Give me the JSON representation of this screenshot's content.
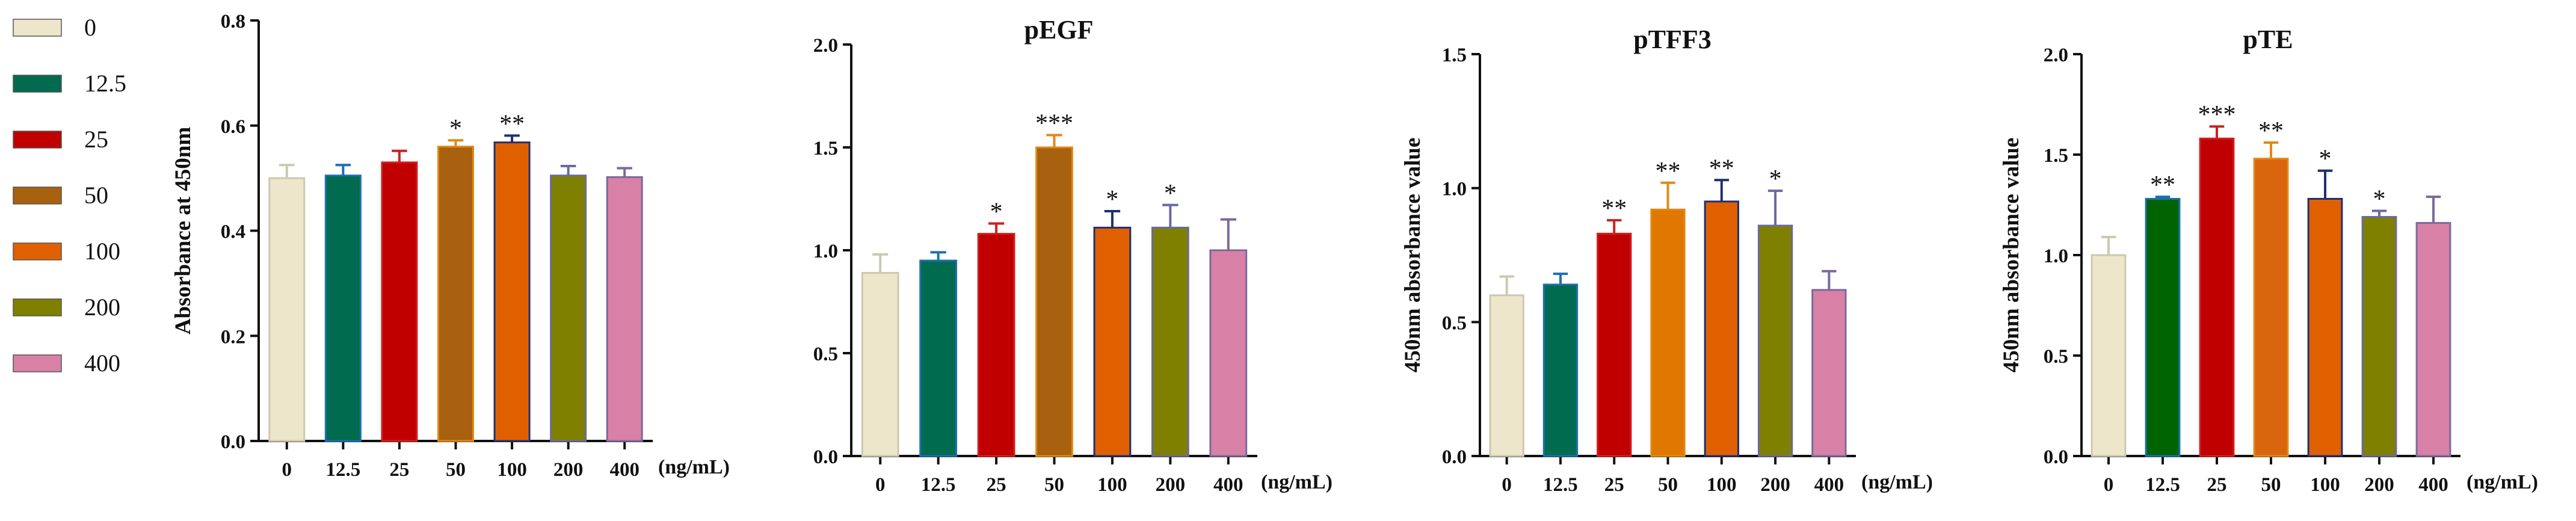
{
  "legend": {
    "items": [
      {
        "label": "0",
        "color": "#EDE6CB"
      },
      {
        "label": "12.5",
        "color": "#006B4E"
      },
      {
        "label": "25",
        "color": "#C00000"
      },
      {
        "label": "50",
        "color": "#A8610E"
      },
      {
        "label": "100",
        "color": "#E06000"
      },
      {
        "label": "200",
        "color": "#808000"
      },
      {
        "label": "400",
        "color": "#D980A6"
      }
    ]
  },
  "chart_data": [
    {
      "type": "bar",
      "title": "",
      "ylabel": "Absorbance at 450nm",
      "xlabel": "(ng/mL)",
      "ylim": [
        0,
        0.8
      ],
      "yticks": [
        "0.0",
        "0.2",
        "0.4",
        "0.6",
        "0.8"
      ],
      "categories": [
        "0",
        "12.5",
        "25",
        "50",
        "100",
        "200",
        "400"
      ],
      "values": [
        0.5,
        0.505,
        0.53,
        0.56,
        0.568,
        0.505,
        0.502
      ],
      "errors": [
        0.025,
        0.02,
        0.022,
        0.012,
        0.013,
        0.018,
        0.017
      ],
      "significance": [
        "",
        "",
        "",
        "*",
        "**",
        "",
        ""
      ],
      "colors": [
        "#EDE6CB",
        "#006B4E",
        "#C00000",
        "#A8610E",
        "#E06000",
        "#808000",
        "#D980A6"
      ],
      "error_colors": [
        "#CCC8B0",
        "#1F6FB0",
        "#D02020",
        "#E08A18",
        "#1F2F70",
        "#6A6AA0",
        "#7A6A9A"
      ]
    },
    {
      "type": "bar",
      "title": "pEGF",
      "ylabel": "",
      "xlabel": "(ng/mL)",
      "ylim": [
        0,
        2.0
      ],
      "yticks": [
        "0.0",
        "0.5",
        "1.0",
        "1.5",
        "2.0"
      ],
      "categories": [
        "0",
        "12.5",
        "25",
        "50",
        "100",
        "200",
        "400"
      ],
      "values": [
        0.89,
        0.95,
        1.08,
        1.5,
        1.11,
        1.11,
        1.0
      ],
      "errors": [
        0.09,
        0.04,
        0.05,
        0.06,
        0.08,
        0.11,
        0.15
      ],
      "significance": [
        "",
        "",
        "*",
        "***",
        "*",
        "*",
        ""
      ],
      "colors": [
        "#EDE6CB",
        "#006B4E",
        "#C00000",
        "#A8610E",
        "#E06000",
        "#808000",
        "#D980A6"
      ],
      "error_colors": [
        "#CCC8B0",
        "#1F6FB0",
        "#D02020",
        "#E08A18",
        "#1F2F70",
        "#6A6AA0",
        "#7A6A9A"
      ]
    },
    {
      "type": "bar",
      "title": "pTFF3",
      "ylabel": "450nm absorbance value",
      "xlabel": "(ng/mL)",
      "ylim": [
        0,
        1.5
      ],
      "yticks": [
        "0.0",
        "0.5",
        "1.0",
        "1.5"
      ],
      "categories": [
        "0",
        "12.5",
        "25",
        "50",
        "100",
        "200",
        "400"
      ],
      "values": [
        0.6,
        0.64,
        0.83,
        0.92,
        0.95,
        0.86,
        0.62
      ],
      "errors": [
        0.07,
        0.04,
        0.05,
        0.1,
        0.08,
        0.13,
        0.07
      ],
      "significance": [
        "",
        "",
        "**",
        "**",
        "**",
        "*",
        ""
      ],
      "colors": [
        "#EDE6CB",
        "#006B4E",
        "#C00000",
        "#E07800",
        "#E06000",
        "#808000",
        "#D980A6"
      ],
      "error_colors": [
        "#CCC8B0",
        "#1F6FB0",
        "#D02020",
        "#E08A18",
        "#1F2F70",
        "#6A6AA0",
        "#7A6A9A"
      ]
    },
    {
      "type": "bar",
      "title": "pTE",
      "ylabel": "450nm absorbance value",
      "xlabel": "(ng/mL)",
      "ylim": [
        0,
        2.0
      ],
      "yticks": [
        "0.0",
        "0.5",
        "1.0",
        "1.5",
        "2.0"
      ],
      "categories": [
        "0",
        "12.5",
        "25",
        "50",
        "100",
        "200",
        "400"
      ],
      "values": [
        1.0,
        1.28,
        1.58,
        1.48,
        1.28,
        1.19,
        1.16
      ],
      "errors": [
        0.09,
        0.01,
        0.06,
        0.08,
        0.14,
        0.03,
        0.13
      ],
      "significance": [
        "",
        "**",
        "***",
        "**",
        "*",
        "*",
        ""
      ],
      "colors": [
        "#EDE6CB",
        "#006400",
        "#C00000",
        "#D9660F",
        "#E06000",
        "#808000",
        "#D980A6"
      ],
      "error_colors": [
        "#CCC8B0",
        "#1F6FB0",
        "#D02020",
        "#E08A18",
        "#1F2F70",
        "#6A6AA0",
        "#7A6A9A"
      ]
    }
  ]
}
